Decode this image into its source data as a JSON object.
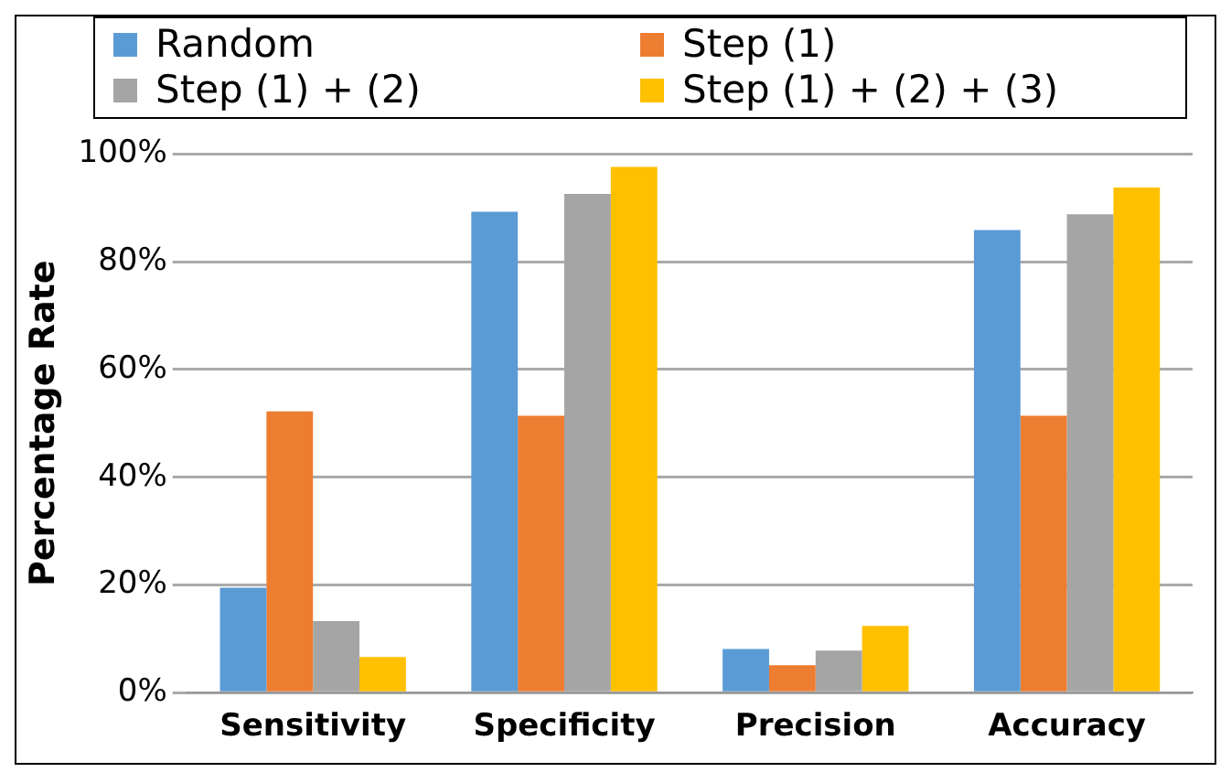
{
  "chart_data": {
    "type": "bar",
    "ylabel": "Percentage Rate",
    "categories": [
      "Sensitivity",
      "Specificity",
      "Precision",
      "Accuracy"
    ],
    "series": [
      {
        "name": "Random",
        "color": "#5b9bd5",
        "values": [
          19.5,
          89.3,
          8.1,
          85.9
        ]
      },
      {
        "name": "Step (1)",
        "color": "#ed7d31",
        "values": [
          52.2,
          51.4,
          5.1,
          51.4
        ]
      },
      {
        "name": "Step (1) + (2)",
        "color": "#a5a5a5",
        "values": [
          13.3,
          92.6,
          7.8,
          88.8
        ]
      },
      {
        "name": "Step (1) + (2) + (3)",
        "color": "#ffc000",
        "values": [
          6.6,
          97.6,
          12.4,
          93.8
        ]
      }
    ],
    "ylim": [
      0,
      100
    ],
    "yticks": [
      {
        "value": 0,
        "label": "0%"
      },
      {
        "value": 20,
        "label": "20%"
      },
      {
        "value": 40,
        "label": "40%"
      },
      {
        "value": 60,
        "label": "60%"
      },
      {
        "value": 80,
        "label": "80%"
      },
      {
        "value": 100,
        "label": "100%"
      }
    ],
    "grid": "y",
    "legend": "top"
  }
}
